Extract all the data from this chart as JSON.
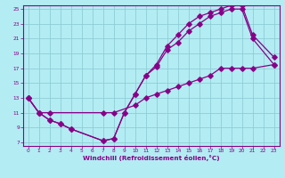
{
  "title": "",
  "xlabel": "Windchill (Refroidissement éolien,°C)",
  "ylabel": "",
  "bg_color": "#b3ecf3",
  "grid_color": "#8ecdd6",
  "line_color": "#880088",
  "xlim": [
    -0.5,
    23.5
  ],
  "ylim": [
    6.5,
    25.5
  ],
  "xticks": [
    0,
    1,
    2,
    3,
    4,
    5,
    6,
    7,
    8,
    9,
    10,
    11,
    12,
    13,
    14,
    15,
    16,
    17,
    18,
    19,
    20,
    21,
    22,
    23
  ],
  "yticks": [
    7,
    9,
    11,
    13,
    15,
    17,
    19,
    21,
    23,
    25
  ],
  "curve1_x": [
    0,
    1,
    2,
    3,
    4,
    7,
    8,
    9,
    10,
    11,
    12,
    13,
    14,
    15,
    16,
    17,
    18,
    19,
    20,
    21,
    23
  ],
  "curve1_y": [
    13,
    11,
    10,
    9.5,
    8.8,
    7.2,
    7.5,
    11,
    13.5,
    16,
    17.2,
    19.5,
    20.5,
    22,
    23,
    24,
    24.5,
    25,
    25,
    21,
    17.5
  ],
  "curve2_x": [
    0,
    1,
    2,
    3,
    4,
    7,
    8,
    9,
    10,
    11,
    12,
    13,
    14,
    15,
    16,
    17,
    18,
    19,
    20,
    21,
    23
  ],
  "curve2_y": [
    13,
    11,
    10,
    9.5,
    8.8,
    7.2,
    7.5,
    11,
    13.5,
    16,
    17.5,
    20,
    21.5,
    23,
    24,
    24.5,
    25,
    25.5,
    25.5,
    21.5,
    18.5
  ],
  "curve3_x": [
    0,
    1,
    2,
    7,
    8,
    10,
    11,
    12,
    13,
    14,
    15,
    16,
    17,
    18,
    19,
    20,
    21,
    23
  ],
  "curve3_y": [
    13,
    11,
    11,
    11,
    11,
    12,
    13,
    13.5,
    14,
    14.5,
    15,
    15.5,
    16,
    17,
    17,
    17,
    17,
    17.5
  ]
}
